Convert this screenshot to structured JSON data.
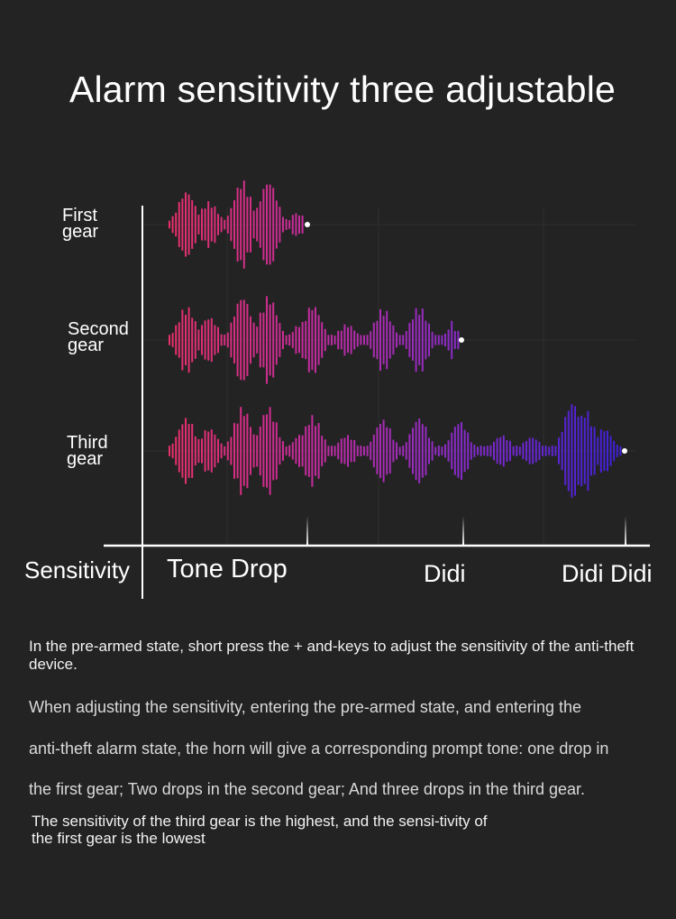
{
  "title": "Alarm sensitivity three adjustable",
  "gears": [
    {
      "line1": "First",
      "line2": "gear"
    },
    {
      "line1": "Second",
      "line2": "gear"
    },
    {
      "line1": "Third",
      "line2": "gear"
    }
  ],
  "axis": {
    "y_label": "Sensitivity",
    "tones": [
      "Tone Drop",
      "Didi",
      "Didi Didi"
    ]
  },
  "colors": {
    "background": "#232323",
    "wave_start": "#e8306a",
    "wave_mid": "#9a2bc4",
    "wave_end": "#3a1fd8",
    "axis": "#ffffff"
  },
  "text": {
    "p1": "In the pre-armed state, short press the + and-keys to adjust the sensitivity of the anti-theft device.",
    "p2_lines": [
      "When adjusting the sensitivity, entering the pre-armed state, and entering the",
      "anti-theft alarm state, the horn will give a corresponding prompt tone: one drop in",
      "the first gear; Two drops in the second gear; And three drops in the third gear."
    ],
    "p3": "The sensitivity of the third gear is the highest, and the sensi-tivity of the first gear is the lowest"
  }
}
